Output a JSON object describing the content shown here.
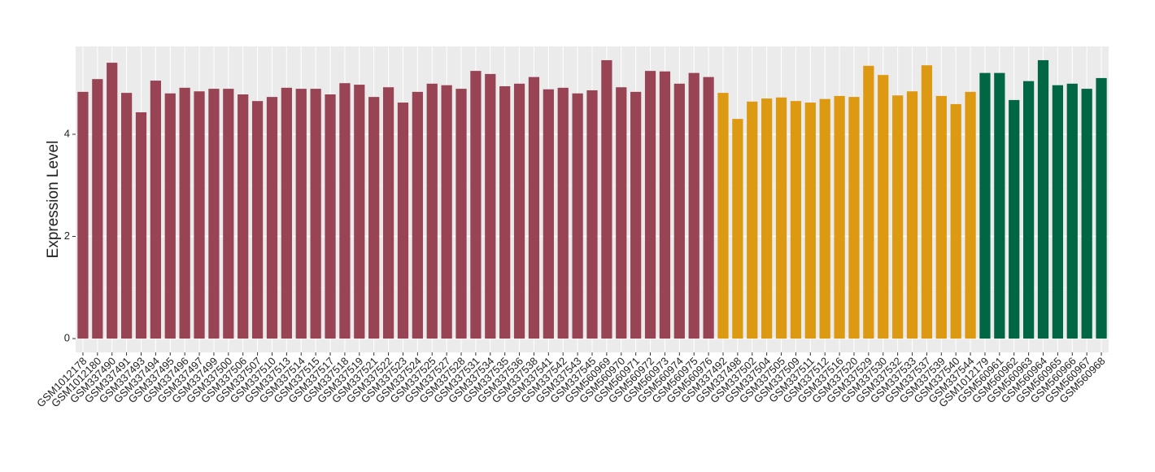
{
  "chart_data": {
    "type": "bar",
    "y_label": "Expression Level",
    "categories": [
      "GSM1012178",
      "GSM1012180",
      "GSM337490",
      "GSM337491",
      "GSM337493",
      "GSM337494",
      "GSM337495",
      "GSM337496",
      "GSM337497",
      "GSM337499",
      "GSM337500",
      "GSM337506",
      "GSM337507",
      "GSM337510",
      "GSM337513",
      "GSM337514",
      "GSM337515",
      "GSM337517",
      "GSM337518",
      "GSM337519",
      "GSM337521",
      "GSM337522",
      "GSM337523",
      "GSM337524",
      "GSM337525",
      "GSM337527",
      "GSM337528",
      "GSM337531",
      "GSM337534",
      "GSM337535",
      "GSM337536",
      "GSM337538",
      "GSM337541",
      "GSM337542",
      "GSM337543",
      "GSM337545",
      "GSM560969",
      "GSM560970",
      "GSM560971",
      "GSM560972",
      "GSM560973",
      "GSM560974",
      "GSM560975",
      "GSM560976",
      "GSM337492",
      "GSM337498",
      "GSM337502",
      "GSM337504",
      "GSM337505",
      "GSM337509",
      "GSM337511",
      "GSM337512",
      "GSM337516",
      "GSM337520",
      "GSM337529",
      "GSM337530",
      "GSM337532",
      "GSM337533",
      "GSM337537",
      "GSM337539",
      "GSM337540",
      "GSM337544",
      "GSM1012179",
      "GSM560961",
      "GSM560962",
      "GSM560963",
      "GSM560964",
      "GSM560965",
      "GSM560966",
      "GSM560967",
      "GSM560968"
    ],
    "values": [
      4.83,
      5.08,
      5.4,
      4.81,
      4.43,
      5.05,
      4.8,
      4.91,
      4.84,
      4.89,
      4.89,
      4.78,
      4.65,
      4.73,
      4.91,
      4.89,
      4.89,
      4.78,
      5.0,
      4.97,
      4.73,
      4.92,
      4.62,
      4.83,
      4.99,
      4.96,
      4.89,
      5.24,
      5.18,
      4.94,
      4.99,
      5.12,
      4.88,
      4.91,
      4.8,
      4.86,
      5.45,
      4.92,
      4.83,
      5.24,
      5.23,
      4.99,
      5.2,
      5.12,
      4.81,
      4.3,
      4.64,
      4.7,
      4.72,
      4.65,
      4.62,
      4.69,
      4.75,
      4.73,
      5.34,
      5.16,
      4.76,
      4.84,
      5.35,
      4.75,
      4.59,
      4.83,
      5.2,
      5.2,
      4.67,
      5.04,
      5.45,
      4.96,
      4.99,
      4.89,
      5.1
    ],
    "colors": [
      "#994455",
      "#994455",
      "#994455",
      "#994455",
      "#994455",
      "#994455",
      "#994455",
      "#994455",
      "#994455",
      "#994455",
      "#994455",
      "#994455",
      "#994455",
      "#994455",
      "#994455",
      "#994455",
      "#994455",
      "#994455",
      "#994455",
      "#994455",
      "#994455",
      "#994455",
      "#994455",
      "#994455",
      "#994455",
      "#994455",
      "#994455",
      "#994455",
      "#994455",
      "#994455",
      "#994455",
      "#994455",
      "#994455",
      "#994455",
      "#994455",
      "#994455",
      "#994455",
      "#994455",
      "#994455",
      "#994455",
      "#994455",
      "#994455",
      "#994455",
      "#994455",
      "#dd9911",
      "#dd9911",
      "#dd9911",
      "#dd9911",
      "#dd9911",
      "#dd9911",
      "#dd9911",
      "#dd9911",
      "#dd9911",
      "#dd9911",
      "#dd9911",
      "#dd9911",
      "#dd9911",
      "#dd9911",
      "#dd9911",
      "#dd9911",
      "#dd9911",
      "#dd9911",
      "#006644",
      "#006644",
      "#006644",
      "#006644",
      "#006644",
      "#006644",
      "#006644",
      "#006644",
      "#006644"
    ],
    "ylim": [
      -0.27,
      5.72
    ],
    "yticks": [
      0,
      2,
      4
    ],
    "grid": true
  }
}
